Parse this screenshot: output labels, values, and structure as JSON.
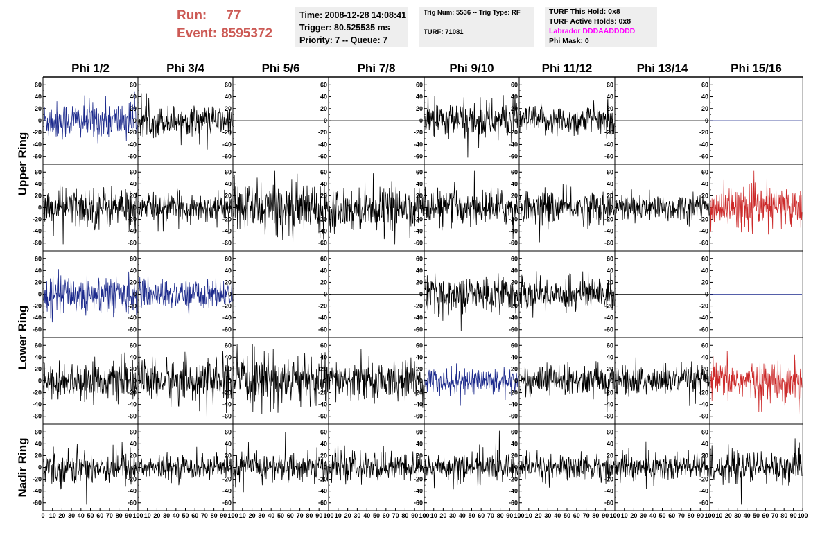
{
  "header": {
    "run_label": "Run:",
    "run_value": "77",
    "event_label": "Event:",
    "event_value": "8595372",
    "time_line": "Time: 2008-12-28 14:08:41",
    "trigger_line": "Trigger: 80.525535 ms",
    "priority_line": "Priority: 7 -- Queue: 7",
    "trig_line": "Trig Num: 5536 -- Trig Type: RF",
    "turf_line": "TURF: 71081",
    "turf_this_hold": "TURF This Hold: 0x8",
    "turf_active_holds": "TURF Active Holds: 0x8",
    "labrador": "Labrador DDDAADDDDD",
    "phi_mask": "Phi Mask: 0",
    "accent_color": "#cc5a55",
    "labrador_color": "#ff00ff",
    "panel_bg": "#eeeeee"
  },
  "chart_data": {
    "type": "line",
    "columns": [
      "Phi 1/2",
      "Phi 3/4",
      "Phi 5/6",
      "Phi 7/8",
      "Phi 9/10",
      "Phi 11/12",
      "Phi 13/14",
      "Phi 15/16"
    ],
    "row_groups": [
      {
        "label": "Upper Ring",
        "rows": [
          0,
          1
        ]
      },
      {
        "label": "Lower Ring",
        "rows": [
          2,
          3
        ]
      },
      {
        "label": "Nadir Ring",
        "rows": [
          4
        ]
      }
    ],
    "ylim": [
      -65,
      65
    ],
    "xlim": [
      0,
      100
    ],
    "y_ticks": [
      -60,
      -40,
      -20,
      0,
      20,
      40,
      60
    ],
    "x_tick_labels": [
      "0",
      "10",
      "20",
      "30",
      "40",
      "50",
      "60",
      "70",
      "80",
      "90",
      "100"
    ],
    "colors": {
      "black": "#000000",
      "blue": "#1c2a8c",
      "red": "#cc2a2a"
    },
    "rows": [
      [
        {
          "color": "blue",
          "amp": 16,
          "flat": false
        },
        {
          "color": "black",
          "amp": 12,
          "flat": false
        },
        {
          "color": "black",
          "amp": 0,
          "flat": true
        },
        {
          "color": "black",
          "amp": 0,
          "flat": true
        },
        {
          "color": "black",
          "amp": 16,
          "flat": false
        },
        {
          "color": "black",
          "amp": 12,
          "flat": false
        },
        {
          "color": "black",
          "amp": 0,
          "flat": true
        },
        {
          "color": "blue",
          "amp": 0,
          "flat": true
        }
      ],
      [
        {
          "color": "black",
          "amp": 17,
          "flat": false
        },
        {
          "color": "black",
          "amp": 12,
          "flat": false
        },
        {
          "color": "black",
          "amp": 21,
          "flat": false
        },
        {
          "color": "black",
          "amp": 17,
          "flat": false
        },
        {
          "color": "black",
          "amp": 15,
          "flat": false
        },
        {
          "color": "black",
          "amp": 14,
          "flat": false
        },
        {
          "color": "black",
          "amp": 12,
          "flat": false
        },
        {
          "color": "red",
          "amp": 17,
          "flat": false
        }
      ],
      [
        {
          "color": "blue",
          "amp": 16,
          "flat": false
        },
        {
          "color": "blue",
          "amp": 12,
          "flat": false
        },
        {
          "color": "black",
          "amp": 0,
          "flat": true
        },
        {
          "color": "black",
          "amp": 0,
          "flat": true
        },
        {
          "color": "black",
          "amp": 15,
          "flat": false
        },
        {
          "color": "black",
          "amp": 14,
          "flat": false
        },
        {
          "color": "black",
          "amp": 0,
          "flat": true
        },
        {
          "color": "blue",
          "amp": 0,
          "flat": true
        }
      ],
      [
        {
          "color": "black",
          "amp": 15,
          "flat": false
        },
        {
          "color": "black",
          "amp": 18,
          "flat": false
        },
        {
          "color": "black",
          "amp": 21,
          "flat": false
        },
        {
          "color": "black",
          "amp": 16,
          "flat": false
        },
        {
          "color": "blue",
          "amp": 11,
          "flat": false
        },
        {
          "color": "black",
          "amp": 13,
          "flat": false
        },
        {
          "color": "black",
          "amp": 13,
          "flat": false
        },
        {
          "color": "red",
          "amp": 16,
          "flat": false
        }
      ],
      [
        {
          "color": "black",
          "amp": 14,
          "flat": false
        },
        {
          "color": "black",
          "amp": 10,
          "flat": false
        },
        {
          "color": "black",
          "amp": 12,
          "flat": false
        },
        {
          "color": "black",
          "amp": 12,
          "flat": false
        },
        {
          "color": "black",
          "amp": 12,
          "flat": false
        },
        {
          "color": "black",
          "amp": 11,
          "flat": false
        },
        {
          "color": "black",
          "amp": 13,
          "flat": false
        },
        {
          "color": "black",
          "amp": 13,
          "flat": false
        }
      ]
    ]
  }
}
